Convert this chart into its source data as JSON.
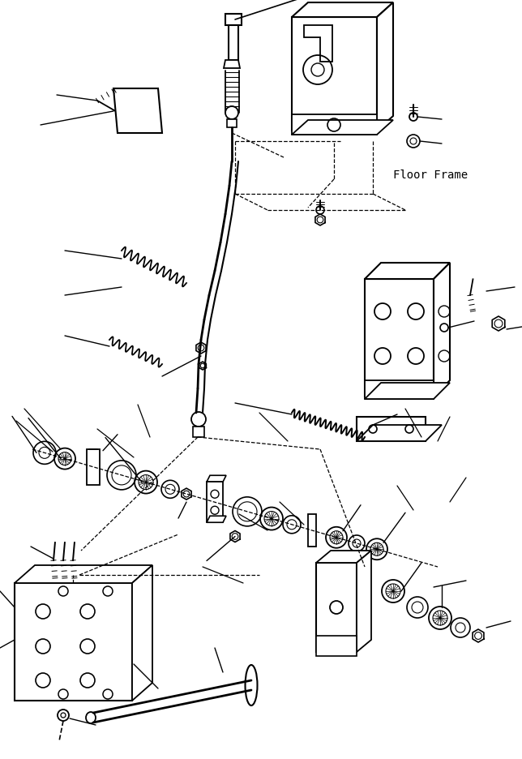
{
  "figsize": [
    6.44,
    9.37
  ],
  "dpi": 100,
  "bg_color": "#ffffff",
  "line_color": "#000000",
  "floor_frame_label": "Floor Frame"
}
